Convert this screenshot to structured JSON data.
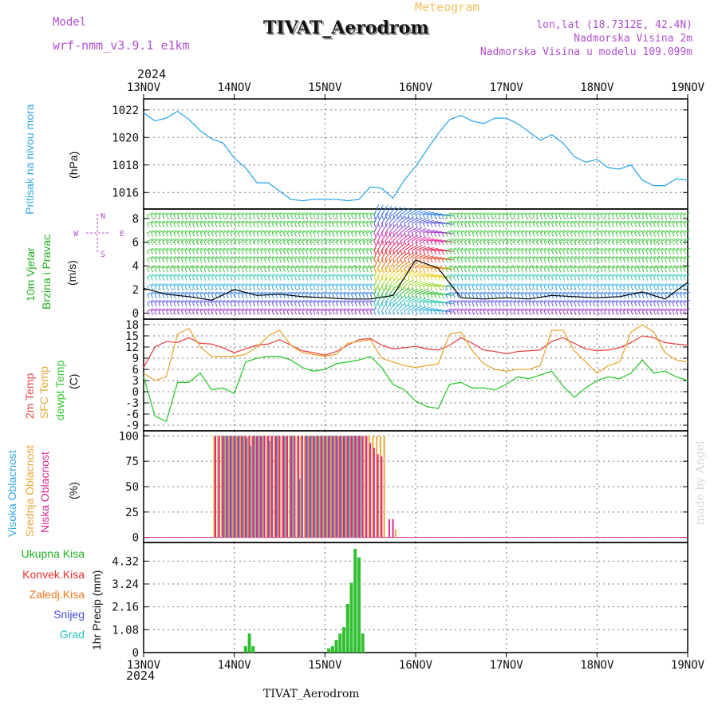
{
  "header": {
    "model_label": "Model",
    "model_value": "wrf-nmm_v3.9.1 e1km",
    "chart_type": "Meteogram",
    "title": "TIVAT_Aerodrom",
    "info_lines": [
      "lon,lat (18.7312E, 42.4N)",
      "Nadmorska Visina 2m",
      "Nadmorska Visina u modelu 109.099m"
    ],
    "year_top": "2024",
    "year_bottom": "2024",
    "footer_station": "TIVAT_Aerodrom",
    "watermark": "made by Angel"
  },
  "colors": {
    "pressure": "#30a8e8",
    "temp_2m": "#e84848",
    "temp_sfc": "#e8a838",
    "dewpoint": "#30c830",
    "cloud_high": "#30a8e8",
    "cloud_mid": "#e8a838",
    "cloud_low": "#d82890",
    "precip": "#30c030",
    "wind_label": "#20b020",
    "compass": "#b050d0"
  },
  "panels": {
    "pressure": {
      "label": "Pritisak na nivou mora",
      "unit": "(hPa)"
    },
    "wind": {
      "label1": "10m Vjetar",
      "label2": "Brzina i Pravac",
      "unit": "(m/s)",
      "compass_n": "N",
      "compass_s": "S",
      "compass_w": "W",
      "compass_e": "E"
    },
    "temp": {
      "label1": "2m Temp",
      "label2": "SFC Temp",
      "label3": "dewpt Temp",
      "unit": "(C)"
    },
    "clouds": {
      "label1": "Visoka Oblacnost",
      "label2": "Srednja Oblacnost",
      "label3": "Niska Oblacnost",
      "unit": "(%)"
    },
    "precip": {
      "ylabel": "1hr Precip (mm)",
      "legend": [
        {
          "name": "Ukupna Kisa",
          "color": "#20b020"
        },
        {
          "name": "Konvek.Kisa",
          "color": "#e83030"
        },
        {
          "name": "Zaledj.Kisa",
          "color": "#f07820"
        },
        {
          "name": "Snijeg",
          "color": "#4848d8"
        },
        {
          "name": "Grad",
          "color": "#20c0c0"
        }
      ]
    }
  },
  "chart_data": [
    {
      "type": "line",
      "x_ticks": [
        "13NOV",
        "14NOV",
        "15NOV",
        "16NOV",
        "17NOV",
        "18NOV",
        "19NOV"
      ],
      "yticks": [
        "1016",
        "1018",
        "1020",
        "1022"
      ],
      "ylim": [
        1014.8,
        1022.8
      ],
      "grid": true,
      "series": [
        {
          "x": [
            0,
            3,
            6,
            9,
            12,
            15,
            18,
            21,
            24,
            27,
            30,
            33,
            36,
            39,
            42,
            45,
            48,
            51,
            54,
            57,
            60,
            63,
            66,
            69,
            72,
            75,
            78,
            81,
            84,
            87,
            90,
            93,
            96,
            99,
            102,
            105,
            108,
            111,
            114,
            117,
            120,
            123,
            126,
            129,
            132,
            135,
            138,
            141,
            144
          ],
          "values": [
            1021.8,
            1021.2,
            1021.4,
            1021.9,
            1021.3,
            1020.5,
            1019.9,
            1019.6,
            1018.5,
            1017.8,
            1016.7,
            1016.7,
            1016.1,
            1015.5,
            1015.4,
            1015.5,
            1015.5,
            1015.5,
            1015.4,
            1015.5,
            1016.4,
            1016.3,
            1015.6,
            1016.9,
            1017.9,
            1019.1,
            1020.3,
            1021.3,
            1021.6,
            1021.2,
            1021.0,
            1021.4,
            1021.4,
            1021.0,
            1020.4,
            1019.8,
            1020.2,
            1019.6,
            1018.6,
            1018.2,
            1018.4,
            1017.8,
            1017.7,
            1018.0,
            1016.9,
            1016.5,
            1016.5,
            1017.0,
            1016.9
          ]
        }
      ]
    },
    {
      "type": "scatter",
      "x_ticks": [
        "13NOV",
        "14NOV",
        "15NOV",
        "16NOV",
        "17NOV",
        "18NOV",
        "19NOV"
      ],
      "yticks": [
        "0",
        "2",
        "4",
        "6",
        "8"
      ],
      "ylim": [
        -0.5,
        8.8
      ],
      "grid": true,
      "rows_ms": [
        0.2,
        0.9,
        1.6,
        2.3,
        3.1,
        3.8,
        4.6,
        5.3,
        6.1,
        6.8,
        7.6,
        8.3
      ],
      "series": [
        {
          "name": "wind speed",
          "x": [
            0,
            6,
            12,
            18,
            24,
            30,
            36,
            42,
            48,
            54,
            60,
            66,
            72,
            78,
            84,
            90,
            96,
            102,
            108,
            114,
            120,
            126,
            132,
            138,
            144
          ],
          "values": [
            2.1,
            1.6,
            1.4,
            1.1,
            2.0,
            1.5,
            1.6,
            1.4,
            1.3,
            1.2,
            1.2,
            1.5,
            4.5,
            3.8,
            1.3,
            1.2,
            1.3,
            1.2,
            1.5,
            1.4,
            1.3,
            1.4,
            1.8,
            1.2,
            2.6
          ]
        }
      ]
    },
    {
      "type": "line",
      "x_ticks": [
        "13NOV",
        "14NOV",
        "15NOV",
        "16NOV",
        "17NOV",
        "18NOV",
        "19NOV"
      ],
      "yticks": [
        "-9",
        "-6",
        "-3",
        "0",
        "3",
        "6",
        "9",
        "12",
        "15",
        "18"
      ],
      "ylim": [
        -10.5,
        19.5
      ],
      "grid": true,
      "series": [
        {
          "name": "2m Temp",
          "x": [
            0,
            3,
            6,
            9,
            12,
            15,
            18,
            21,
            24,
            27,
            30,
            33,
            36,
            39,
            42,
            45,
            48,
            51,
            54,
            57,
            60,
            63,
            66,
            69,
            72,
            75,
            78,
            81,
            84,
            87,
            90,
            93,
            96,
            99,
            102,
            105,
            108,
            111,
            114,
            117,
            120,
            123,
            126,
            129,
            132,
            135,
            138,
            141,
            144
          ],
          "values": [
            6.5,
            12,
            13.5,
            13.2,
            14.5,
            13,
            12.8,
            11.8,
            10.5,
            11.5,
            12.5,
            12.8,
            14,
            12.5,
            11,
            10.5,
            9.8,
            10.8,
            12.5,
            14,
            14.3,
            12.5,
            11.5,
            11.8,
            12.2,
            11.5,
            11.2,
            12.5,
            14.5,
            13,
            11.2,
            10.8,
            10.2,
            10.8,
            11.0,
            11.2,
            13.5,
            14.5,
            13,
            11.5,
            11.0,
            11.2,
            11.8,
            13.2,
            15.0,
            14.5,
            13.2,
            12.8,
            12.5
          ]
        },
        {
          "name": "SFC Temp",
          "x": [
            0,
            3,
            6,
            9,
            12,
            15,
            18,
            21,
            24,
            27,
            30,
            33,
            36,
            39,
            42,
            45,
            48,
            51,
            54,
            57,
            60,
            63,
            66,
            69,
            72,
            75,
            78,
            81,
            84,
            87,
            90,
            93,
            96,
            99,
            102,
            105,
            108,
            111,
            114,
            117,
            120,
            123,
            126,
            129,
            132,
            135,
            138,
            141,
            144
          ],
          "values": [
            5,
            3,
            4,
            15.5,
            17,
            12,
            9.5,
            9.5,
            9.5,
            10,
            12,
            15,
            16.5,
            12.5,
            10.5,
            10,
            9.5,
            10,
            13,
            13.5,
            14,
            9,
            8,
            7,
            6.5,
            7,
            7.5,
            15.5,
            16,
            11,
            7.5,
            6,
            5.5,
            6,
            6,
            7,
            16.5,
            16.5,
            11,
            8,
            5,
            7,
            8,
            16,
            18,
            16,
            10.5,
            8.5,
            8
          ]
        },
        {
          "name": "dewpt Temp",
          "x": [
            0,
            3,
            6,
            9,
            12,
            15,
            18,
            21,
            24,
            27,
            30,
            33,
            36,
            39,
            42,
            45,
            48,
            51,
            54,
            57,
            60,
            63,
            66,
            69,
            72,
            75,
            78,
            81,
            84,
            87,
            90,
            93,
            96,
            99,
            102,
            105,
            108,
            111,
            114,
            117,
            120,
            123,
            126,
            129,
            132,
            135,
            138,
            141,
            144
          ],
          "values": [
            4,
            -6.5,
            -8,
            2.5,
            2.5,
            5,
            0.5,
            1,
            -0.5,
            8,
            9,
            9.5,
            9.5,
            8.5,
            6.5,
            5.5,
            6,
            7.5,
            8,
            8.5,
            9.5,
            6.5,
            2,
            0.5,
            -2.5,
            -4,
            -4.5,
            2,
            2.5,
            1,
            1,
            0.5,
            2,
            4,
            3.5,
            4.5,
            5.5,
            1.5,
            -1.5,
            1,
            3,
            4,
            3.5,
            5,
            8.5,
            5,
            5.5,
            4,
            3
          ]
        }
      ]
    },
    {
      "type": "bar",
      "x_ticks": [
        "13NOV",
        "14NOV",
        "15NOV",
        "16NOV",
        "17NOV",
        "18NOV",
        "19NOV"
      ],
      "yticks": [
        "0",
        "25",
        "50",
        "75",
        "100"
      ],
      "ylim": [
        -5,
        105
      ],
      "grid": true,
      "series": [
        {
          "name": "Visoka Oblacnost",
          "x": [
            19,
            20,
            21,
            22,
            23,
            24,
            25,
            26,
            27,
            28,
            29,
            30,
            31,
            33,
            35,
            37,
            39,
            41,
            43,
            44,
            45,
            46,
            47,
            48,
            49,
            50,
            51,
            52,
            53,
            54,
            55,
            56,
            57,
            58,
            59,
            60,
            61,
            62,
            63,
            64,
            65,
            66,
            67
          ],
          "values": [
            0,
            0,
            100,
            100,
            100,
            100,
            100,
            100,
            98,
            90,
            100,
            100,
            100,
            95,
            100,
            100,
            100,
            58,
            100,
            100,
            100,
            100,
            100,
            100,
            100,
            100,
            100,
            100,
            100,
            100,
            100,
            100,
            100,
            0,
            0,
            0,
            0,
            0,
            0,
            0,
            0,
            0,
            0
          ]
        },
        {
          "name": "Srednja Oblacnost",
          "x": [
            19,
            20,
            21,
            22,
            23,
            24,
            25,
            26,
            27,
            28,
            29,
            30,
            31,
            32,
            33,
            34,
            35,
            36,
            37,
            38,
            39,
            40,
            41,
            42,
            43,
            44,
            45,
            46,
            47,
            48,
            49,
            50,
            51,
            52,
            53,
            54,
            55,
            56,
            57,
            58,
            59,
            60,
            61,
            62,
            63,
            64,
            65,
            66,
            67
          ],
          "values": [
            100,
            100,
            100,
            100,
            100,
            100,
            100,
            100,
            100,
            100,
            100,
            100,
            100,
            100,
            100,
            100,
            100,
            100,
            100,
            100,
            100,
            100,
            100,
            100,
            100,
            100,
            100,
            100,
            100,
            100,
            100,
            100,
            100,
            100,
            100,
            100,
            100,
            100,
            100,
            100,
            100,
            100,
            100,
            100,
            100,
            100,
            0,
            0,
            8
          ]
        },
        {
          "name": "Niska Oblacnost",
          "x": [
            19,
            20,
            21,
            22,
            23,
            24,
            25,
            26,
            27,
            28,
            29,
            30,
            31,
            32,
            33,
            34,
            35,
            36,
            37,
            38,
            39,
            40,
            41,
            42,
            43,
            44,
            45,
            46,
            47,
            48,
            49,
            50,
            51,
            52,
            53,
            54,
            55,
            56,
            57,
            58,
            59,
            60,
            61,
            62,
            63,
            64,
            65,
            66,
            67
          ],
          "values": [
            100,
            100,
            100,
            100,
            100,
            100,
            100,
            100,
            100,
            100,
            100,
            100,
            100,
            100,
            100,
            100,
            100,
            100,
            100,
            100,
            100,
            100,
            100,
            100,
            100,
            100,
            100,
            100,
            100,
            100,
            100,
            100,
            100,
            100,
            100,
            100,
            100,
            100,
            100,
            100,
            100,
            93,
            88,
            82,
            80,
            0,
            18,
            18,
            0
          ]
        }
      ]
    },
    {
      "type": "bar",
      "x_ticks": [
        "13NOV",
        "14NOV",
        "15NOV",
        "16NOV",
        "17NOV",
        "18NOV",
        "19NOV"
      ],
      "yticks": [
        "0",
        "1.08",
        "2.16",
        "3.24",
        "4.32"
      ],
      "ylim": [
        0,
        5.2
      ],
      "grid": true,
      "series": [
        {
          "name": "Ukupna Kisa",
          "x": [
            27,
            28,
            29,
            30,
            31,
            32,
            33,
            34,
            35,
            36,
            37,
            38,
            39,
            40,
            41,
            42,
            43,
            44,
            45,
            46,
            47,
            48,
            49,
            50,
            51,
            52,
            53,
            54,
            55,
            56,
            57,
            58
          ],
          "values": [
            0.3,
            0.9,
            0.3,
            0,
            0,
            0,
            0,
            0,
            0,
            0,
            0,
            0,
            0,
            0,
            0,
            0,
            0,
            0,
            0,
            0,
            0,
            0,
            0.2,
            0.3,
            0.6,
            0.9,
            1.2,
            2.3,
            3.3,
            4.9,
            4.5,
            0.9
          ]
        }
      ]
    }
  ]
}
